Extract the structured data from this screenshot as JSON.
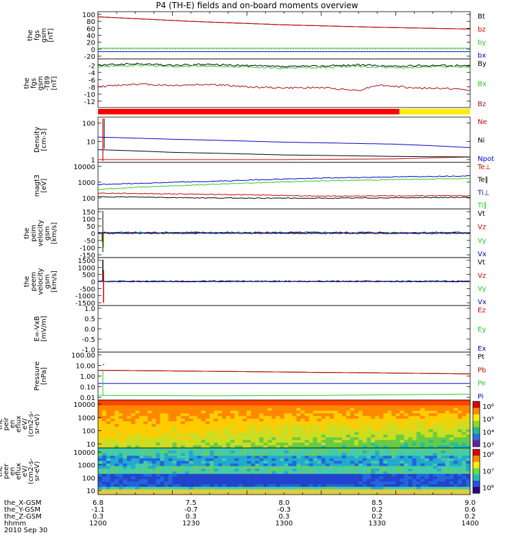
{
  "title": "P4 (TH-E) fields and on-board moments overview",
  "date": "2010 Sep 30",
  "colors": {
    "black": "#000000",
    "red": "#cc0000",
    "darkred": "#a31010",
    "green": "#22cc22",
    "blue": "#0000cc",
    "yellow": "#ffee00"
  },
  "ephemeris": {
    "labels": [
      "the_X-GSM",
      "the_Y-GSM",
      "the_Z-GSM",
      "hhmm"
    ],
    "columns": [
      [
        "6.8",
        "-1.1",
        "0.3",
        "1200"
      ],
      [
        "7.5",
        "-0.7",
        "0.3",
        "1230"
      ],
      [
        "8.0",
        "-0.3",
        "0.3",
        "1300"
      ],
      [
        "8.5",
        "0.2",
        "0.2",
        "1330"
      ],
      [
        "9.0",
        "0.6",
        "0.2",
        "1400"
      ]
    ]
  },
  "chart_data": [
    {
      "id": "fgs",
      "type": "line",
      "ylabel": "the fgs gsm [nT]",
      "ylim": [
        -20,
        100
      ],
      "yticks": [
        "100",
        "80",
        "60",
        "40",
        "20",
        "0",
        "-20"
      ],
      "series": [
        {
          "name": "Bt",
          "color": "black",
          "x": [
            0,
            0.25,
            0.5,
            0.75,
            1
          ],
          "values": [
            93,
            80,
            70,
            63,
            58
          ]
        },
        {
          "name": "bz",
          "color": "red",
          "x": [
            0,
            0.25,
            0.5,
            0.75,
            1
          ],
          "values": [
            93,
            80,
            70,
            63,
            58
          ]
        },
        {
          "name": "by",
          "color": "green",
          "x": [
            0,
            0.25,
            0.5,
            0.75,
            1
          ],
          "values": [
            3,
            3,
            3,
            3,
            3
          ]
        },
        {
          "name": "bx",
          "color": "blue",
          "x": [
            0,
            0.25,
            0.5,
            0.75,
            1
          ],
          "values": [
            -7,
            -7,
            -7,
            -7,
            -7
          ]
        }
      ]
    },
    {
      "id": "fgs_t89",
      "type": "line",
      "ylabel": "the fgs gsm -T89 [nT]",
      "ylim": [
        -13,
        -1
      ],
      "yticks": [
        "-2",
        "-4",
        "-6",
        "-8",
        "-10",
        "-12"
      ],
      "series": [
        {
          "name": "By",
          "color": "black",
          "x": [
            0,
            0.1,
            0.2,
            0.3,
            0.4,
            0.5,
            0.6,
            0.7,
            0.8,
            0.9,
            1
          ],
          "values": [
            -2,
            -1.6,
            -2,
            -1.8,
            -2.1,
            -2.4,
            -2.2,
            -1.9,
            -2.3,
            -2.0,
            -2.2
          ]
        },
        {
          "name": "Bx",
          "color": "green",
          "x": [
            0,
            0.1,
            0.2,
            0.3,
            0.4,
            0.5,
            0.6,
            0.7,
            0.8,
            0.9,
            1
          ],
          "values": [
            -2.4,
            -2,
            -2.3,
            -2.2,
            -2.5,
            -2.8,
            -2.6,
            -2.3,
            -2.7,
            -2.4,
            -2.6
          ]
        },
        {
          "name": "Bz",
          "color": "darkred",
          "x": [
            0,
            0.1,
            0.2,
            0.3,
            0.4,
            0.5,
            0.6,
            0.7,
            0.75,
            0.85,
            0.95,
            1
          ],
          "values": [
            -8,
            -7.2,
            -7.6,
            -7.3,
            -8,
            -8.3,
            -8.2,
            -9,
            -7.5,
            -8.3,
            -8.5,
            -9
          ]
        }
      ]
    },
    {
      "id": "density",
      "type": "line",
      "ylabel": "Density [cm-3]",
      "scale": "log",
      "ylim": [
        1,
        150
      ],
      "yticks": [
        "100",
        "10",
        "1"
      ],
      "series": [
        {
          "name": "Ne",
          "color": "red",
          "x": [
            0,
            0.2,
            0.5,
            0.8,
            1
          ],
          "values": [
            1,
            1,
            1,
            1.1,
            1.4
          ]
        },
        {
          "name": "Ni",
          "color": "black",
          "x": [
            0,
            0.2,
            0.5,
            0.8,
            1
          ],
          "values": [
            3.5,
            2.5,
            1.8,
            1.5,
            1.4
          ]
        },
        {
          "name": "Npot",
          "color": "blue",
          "x": [
            0,
            0.2,
            0.5,
            0.8,
            1
          ],
          "values": [
            17,
            13,
            9,
            7,
            4.5
          ]
        }
      ]
    },
    {
      "id": "temp",
      "type": "line",
      "ylabel": "magt3 [eV]",
      "scale": "log",
      "ylim": [
        30,
        12000
      ],
      "yticks": [
        "10000",
        "1000",
        "100"
      ],
      "series": [
        {
          "name": "Te⊥",
          "color": "red",
          "x": [
            0,
            0.3,
            0.6,
            1
          ],
          "values": [
            200,
            170,
            130,
            140
          ]
        },
        {
          "name": "Te∥",
          "color": "black",
          "x": [
            0,
            0.3,
            0.6,
            1
          ],
          "values": [
            120,
            100,
            95,
            110
          ]
        },
        {
          "name": "Ti⊥",
          "color": "blue",
          "x": [
            0,
            0.3,
            0.6,
            1
          ],
          "values": [
            700,
            1100,
            1800,
            2500
          ]
        },
        {
          "name": "Ti∥",
          "color": "green",
          "x": [
            0,
            0.3,
            0.6,
            1
          ],
          "values": [
            350,
            700,
            1200,
            1700
          ]
        }
      ]
    },
    {
      "id": "peim",
      "type": "line",
      "ylabel": "the peim velocity gsm [km/s]",
      "ylim": [
        -150,
        150
      ],
      "yticks": [
        "150",
        "100",
        "50",
        "0",
        "-50",
        "-100",
        "-150"
      ],
      "series": [
        {
          "name": "Vt",
          "color": "black",
          "x": [
            0,
            1
          ],
          "values": [
            5,
            5
          ]
        },
        {
          "name": "Vz",
          "color": "red",
          "x": [
            0,
            1
          ],
          "values": [
            0,
            0
          ]
        },
        {
          "name": "Vy",
          "color": "green",
          "x": [
            0,
            1
          ],
          "values": [
            0,
            0
          ]
        },
        {
          "name": "Vx",
          "color": "blue",
          "x": [
            0,
            1
          ],
          "values": [
            0,
            0
          ]
        }
      ]
    },
    {
      "id": "peem",
      "type": "line",
      "ylabel": "the peem velocity gsm [km/s]",
      "ylim": [
        -1500,
        1500
      ],
      "yticks": [
        "1500",
        "1000",
        "500",
        "0",
        "-500",
        "-1000",
        "-1500"
      ],
      "series": [
        {
          "name": "Vt",
          "color": "black",
          "x": [
            0,
            1
          ],
          "values": [
            30,
            30
          ]
        },
        {
          "name": "Vz",
          "color": "red",
          "x": [
            0,
            1
          ],
          "values": [
            0,
            0
          ]
        },
        {
          "name": "Vy",
          "color": "green",
          "x": [
            0,
            1
          ],
          "values": [
            0,
            0
          ]
        },
        {
          "name": "Vx",
          "color": "blue",
          "x": [
            0,
            1
          ],
          "values": [
            0,
            0
          ]
        }
      ]
    },
    {
      "id": "efield",
      "type": "line",
      "ylabel": "E=-VxB [mV/m]",
      "ylim": [
        -1,
        1
      ],
      "yticks": [
        "1.0",
        "0.5",
        "0.0",
        "-0.5",
        "-1.0"
      ],
      "series": [
        {
          "name": "Ez",
          "color": "red",
          "x": [],
          "values": []
        },
        {
          "name": "Ey",
          "color": "green",
          "x": [],
          "values": []
        },
        {
          "name": "Ex",
          "color": "blue",
          "x": [],
          "values": []
        }
      ]
    },
    {
      "id": "pressure",
      "type": "line",
      "ylabel": "Pressure [nPa]",
      "scale": "log",
      "ylim": [
        0.01,
        100
      ],
      "yticks": [
        "100.00",
        "10.00",
        "1.00",
        "0.10",
        "0.01"
      ],
      "series": [
        {
          "name": "Pt",
          "color": "black",
          "x": [
            0,
            0.3,
            0.6,
            1
          ],
          "values": [
            3.5,
            2.8,
            2.2,
            1.6
          ]
        },
        {
          "name": "Pb",
          "color": "red",
          "x": [
            0,
            0.3,
            0.6,
            1
          ],
          "values": [
            3.5,
            2.8,
            2.2,
            1.6
          ]
        },
        {
          "name": "Pe",
          "color": "green",
          "x": [
            0,
            0.3,
            0.6,
            1
          ],
          "values": [
            0.015,
            0.014,
            0.015,
            0.02
          ]
        },
        {
          "name": "Pi",
          "color": "blue",
          "x": [
            0,
            0.3,
            0.6,
            1
          ],
          "values": [
            0.2,
            0.2,
            0.2,
            0.2
          ]
        }
      ]
    },
    {
      "id": "peir",
      "type": "heatmap",
      "ylabel": "the peir en eflux eV/(cm2-s-sr-eV)",
      "ylabel_parts": [
        "the",
        "peir",
        "en",
        "eflux",
        "eV/",
        "(cm2-s-",
        "sr-eV)"
      ],
      "yticks": [
        "10000",
        "1000",
        "100",
        "10"
      ],
      "colorbar_ticks": [
        "10⁶",
        "10⁵",
        "10⁴",
        "10³"
      ]
    },
    {
      "id": "peer",
      "type": "heatmap",
      "ylabel": "the peer en eflux eV/(cm2-s-sr-eV)",
      "ylabel_parts": [
        "the",
        "peer",
        "en",
        "eflux",
        "eV/",
        "(cm2-s-",
        "sr-eV)"
      ],
      "yticks": [
        "10000",
        "1000",
        "100",
        "10"
      ],
      "colorbar_ticks": [
        "10⁸",
        "10⁷",
        "10⁶"
      ]
    }
  ]
}
